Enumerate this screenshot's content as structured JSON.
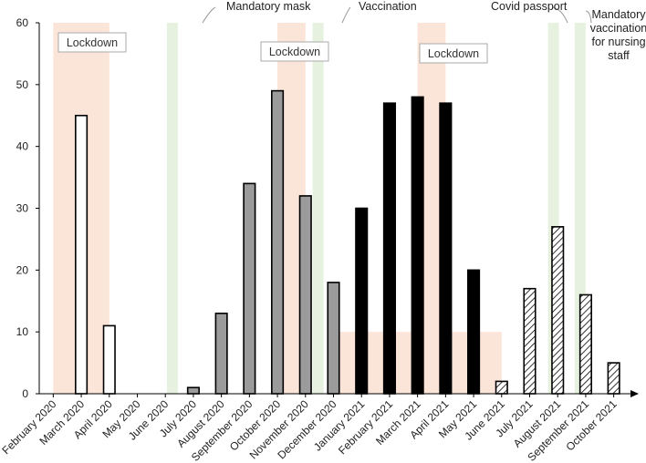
{
  "chart_data": {
    "type": "bar",
    "title": "",
    "xlabel": "",
    "ylabel": "",
    "ylim": [
      0,
      60
    ],
    "yticks": [
      0,
      10,
      20,
      30,
      40,
      50,
      60
    ],
    "categories": [
      "February 2020",
      "March 2020",
      "April 2020",
      "May 2020",
      "June 2020",
      "July 2020",
      "August 2020",
      "September 2020",
      "October 2020",
      "November 2020",
      "December 2020",
      "January 2021",
      "February 2021",
      "March 2021",
      "April 2021",
      "May 2021",
      "June 2021",
      "July 2021",
      "August 2021",
      "September 2021",
      "October 2021"
    ],
    "values": [
      0,
      45,
      11,
      0,
      0,
      1,
      13,
      34,
      49,
      32,
      18,
      30,
      47,
      48,
      47,
      20,
      2,
      17,
      27,
      16,
      5
    ],
    "fill_styles": [
      "white",
      "white",
      "white",
      "white",
      "white",
      "gray",
      "gray",
      "gray",
      "gray",
      "gray",
      "gray",
      "black",
      "black",
      "black",
      "black",
      "black",
      "hatch",
      "hatch",
      "hatch",
      "hatch",
      "hatch"
    ],
    "colors": {
      "white": "#ffffff",
      "gray": "#9b9b9b",
      "black": "#000000",
      "lockdown_band": "#fbe4d8",
      "measure_band": "#e6f2df",
      "label_box_border": "#aaaaaa",
      "callout_line": "#999999"
    },
    "lockdown_bands": [
      {
        "from": 0.5,
        "to": 2.5,
        "ymax": 60
      },
      {
        "from": 8.5,
        "to": 9.5,
        "ymax": 60
      },
      {
        "from": 10.5,
        "to": 16.5,
        "ymax": 10
      },
      {
        "from": 13.5,
        "to": 14.5,
        "ymax": 60
      }
    ],
    "measure_bands": [
      {
        "at": 4.75,
        "ymax": 60
      },
      {
        "at": 9.95,
        "ymax": 60
      },
      {
        "at": 18.35,
        "ymax": 60
      },
      {
        "at": 19.3,
        "ymax": 60
      }
    ],
    "lockdown_labels": [
      "Lockdown",
      "Lockdown",
      "Lockdown"
    ],
    "annotations": [
      "Mandatory mask",
      "Vaccination",
      "Covid passport",
      "Mandatory vaccination for nursing staff"
    ]
  }
}
